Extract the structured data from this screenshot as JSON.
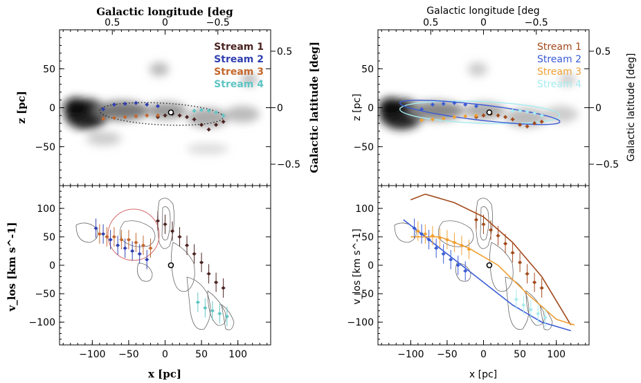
{
  "colors": {
    "stream1_left": "#4a2320",
    "stream2_left": "#2f3fb0",
    "stream3_left": "#c4672c",
    "stream4_left": "#5fc4c4",
    "stream1_right": "#a2491b",
    "stream2_right": "#3a5bd6",
    "stream3_right": "#f0a034",
    "stream4_right": "#a6ecf0",
    "dust": "#666666",
    "circle": "#d46a6a"
  },
  "chart_data": [
    {
      "type": "scatter",
      "panel": "top-left",
      "title": "",
      "xlabel": "",
      "ylabel": "z [pc]",
      "top_axis_label": "Galactic longitude [deg",
      "right_axis_label": "Galactic latitude [deg]",
      "xlim": [
        -145,
        145
      ],
      "ylim": [
        -100,
        100
      ],
      "x_ticks": [],
      "y_ticks": [
        -50,
        0,
        50
      ],
      "y_tick_labels": [
        "−50",
        "0",
        "50"
      ],
      "top_ticks": [
        0.5,
        0,
        -0.5
      ],
      "top_tick_labels": [
        "0.5",
        "0",
        "−0.5"
      ],
      "right_ticks": [
        0.5,
        0,
        -0.5
      ],
      "right_tick_labels": [
        "0.5",
        "0",
        "−0.5"
      ],
      "legend": [
        "Stream 1",
        "Stream 2",
        "Stream 3",
        "Stream 4"
      ],
      "legend_position": "top-right",
      "series": [
        {
          "name": "Stream 1",
          "x": [
            -10,
            0,
            10,
            20,
            30,
            40,
            50,
            60,
            70,
            80
          ],
          "y": [
            -12,
            -10,
            -8,
            -10,
            -12,
            -15,
            -22,
            -28,
            -22,
            -18
          ]
        },
        {
          "name": "Stream 2",
          "x": [
            -85,
            -70,
            -55,
            -40,
            -25,
            -10
          ],
          "y": [
            -2,
            4,
            5,
            6,
            4,
            2
          ]
        },
        {
          "name": "Stream 3",
          "x": [
            -85,
            -70,
            -55,
            -40,
            -25,
            -10
          ],
          "y": [
            -14,
            -13,
            -12,
            -11,
            -10,
            -10
          ]
        },
        {
          "name": "Stream 4",
          "x": [
            40,
            50,
            60,
            70,
            80
          ],
          "y": [
            -4,
            -3,
            -4,
            -6,
            -10
          ]
        }
      ],
      "marker": {
        "name": "Sgr A*",
        "x": 8,
        "y": -6
      }
    },
    {
      "type": "scatter",
      "panel": "top-right",
      "title": "",
      "xlabel": "",
      "ylabel": "z [pc]",
      "top_axis_label": "Galactic longitude [deg",
      "right_axis_label": "Galactic latitude [deg]",
      "xlim": [
        -145,
        145
      ],
      "ylim": [
        -100,
        100
      ],
      "y_ticks": [
        -50,
        0,
        50
      ],
      "y_tick_labels": [
        "−50",
        "0",
        "50"
      ],
      "top_ticks": [
        0.5,
        0,
        -0.5
      ],
      "top_tick_labels": [
        "0.5",
        "0",
        "−0.5"
      ],
      "right_ticks": [
        0.5,
        0,
        -0.5
      ],
      "right_tick_labels": [
        "0.5",
        "0",
        "−0.5"
      ],
      "legend": [
        "Stream 1",
        "Stream 2",
        "Stream 3",
        "Stream 4"
      ],
      "legend_position": "top-right",
      "series": [
        {
          "name": "Stream 1",
          "x": [
            -10,
            0,
            10,
            20,
            30,
            40,
            50,
            60,
            70,
            80
          ],
          "y": [
            -12,
            -10,
            -8,
            -10,
            -12,
            -15,
            -22,
            -24,
            -20,
            -18
          ]
        },
        {
          "name": "Stream 2",
          "x": [
            -85,
            -70,
            -55,
            -40,
            -25,
            -10
          ],
          "y": [
            -2,
            4,
            5,
            6,
            4,
            2
          ]
        },
        {
          "name": "Stream 3",
          "x": [
            -85,
            -70,
            -55,
            -40,
            -25,
            -10
          ],
          "y": [
            -16,
            -15,
            -14,
            -12,
            -11,
            -10
          ]
        },
        {
          "name": "Stream 4",
          "x": [
            40,
            50,
            60,
            70,
            80
          ],
          "y": [
            -4,
            -4,
            -5,
            -7,
            -10
          ]
        }
      ],
      "marker": {
        "name": "Sgr A*",
        "x": 8,
        "y": -6
      }
    },
    {
      "type": "scatter",
      "panel": "bottom-left",
      "title": "",
      "xlabel": "x [pc]",
      "ylabel": "v_los [km s^-1]",
      "xlim": [
        -145,
        145
      ],
      "ylim": [
        -140,
        140
      ],
      "x_ticks": [
        -100,
        -50,
        0,
        50,
        100
      ],
      "x_tick_labels": [
        "−100",
        "−50",
        "0",
        "50",
        "100"
      ],
      "y_ticks": [
        -100,
        -50,
        0,
        50,
        100
      ],
      "y_tick_labels": [
        "−100",
        "−50",
        "0",
        "50",
        "100"
      ],
      "series": [
        {
          "name": "Stream 1",
          "x": [
            -10,
            0,
            10,
            20,
            30,
            40,
            50,
            60,
            70,
            80
          ],
          "y": [
            78,
            72,
            60,
            50,
            35,
            20,
            5,
            -15,
            -30,
            -40
          ]
        },
        {
          "name": "Stream 2",
          "x": [
            -95,
            -85,
            -75,
            -65,
            -55,
            -45,
            -35,
            -25
          ],
          "y": [
            65,
            55,
            45,
            35,
            30,
            25,
            20,
            10
          ]
        },
        {
          "name": "Stream 3",
          "x": [
            -90,
            -80,
            -70,
            -60,
            -50,
            -40,
            -30,
            -20
          ],
          "y": [
            55,
            50,
            50,
            45,
            45,
            40,
            35,
            30
          ]
        },
        {
          "name": "Stream 4",
          "x": [
            45,
            55,
            65,
            75,
            85
          ],
          "y": [
            -65,
            -75,
            -80,
            -85,
            -90
          ]
        }
      ],
      "marker": {
        "name": "Sgr A*",
        "x": 8,
        "y": 0
      }
    },
    {
      "type": "scatter",
      "panel": "bottom-right",
      "title": "",
      "xlabel": "x [pc]",
      "ylabel": "v_los [km s^-1]",
      "xlim": [
        -145,
        145
      ],
      "ylim": [
        -140,
        140
      ],
      "x_ticks": [
        -100,
        -50,
        0,
        50,
        100
      ],
      "x_tick_labels": [
        "−100",
        "−50",
        "0",
        "50",
        "100"
      ],
      "y_ticks": [
        -100,
        -50,
        0,
        50,
        100
      ],
      "y_tick_labels": [
        "−100",
        "−50",
        "0",
        "50",
        "100"
      ],
      "series": [
        {
          "name": "Stream 1",
          "x": [
            -10,
            0,
            10,
            20,
            30,
            40,
            50,
            60,
            70,
            80
          ],
          "y": [
            80,
            72,
            62,
            52,
            38,
            22,
            5,
            -15,
            -30,
            -40
          ]
        },
        {
          "name": "Stream 2",
          "x": [
            -95,
            -85,
            -75,
            -65,
            -55,
            -45,
            -35,
            -25
          ],
          "y": [
            65,
            55,
            45,
            30,
            20,
            10,
            0,
            -10
          ]
        },
        {
          "name": "Stream 3",
          "x": [
            -90,
            -80,
            -70,
            -60,
            -50,
            -40,
            -30,
            -20
          ],
          "y": [
            60,
            55,
            52,
            48,
            45,
            40,
            35,
            28
          ]
        },
        {
          "name": "Stream 4",
          "x": [
            45,
            55,
            65,
            75,
            85
          ],
          "y": [
            -60,
            -70,
            -78,
            -85,
            -92
          ]
        }
      ],
      "model_orbits": [
        {
          "name": "Stream 1",
          "x": [
            -100,
            -80,
            -40,
            0,
            40,
            80,
            120
          ],
          "y": [
            115,
            125,
            110,
            85,
            40,
            -20,
            -105
          ]
        },
        {
          "name": "Stream 2",
          "x": [
            -110,
            -80,
            -40,
            0,
            40,
            80,
            120
          ],
          "y": [
            80,
            50,
            10,
            -30,
            -70,
            -100,
            -115
          ]
        },
        {
          "name": "Stream 3",
          "x": [
            -100,
            -60,
            -20,
            20,
            60,
            100,
            125
          ],
          "y": [
            50,
            50,
            30,
            0,
            -50,
            -95,
            -105
          ]
        }
      ],
      "marker": {
        "name": "Sgr A*",
        "x": 8,
        "y": 0
      }
    }
  ]
}
